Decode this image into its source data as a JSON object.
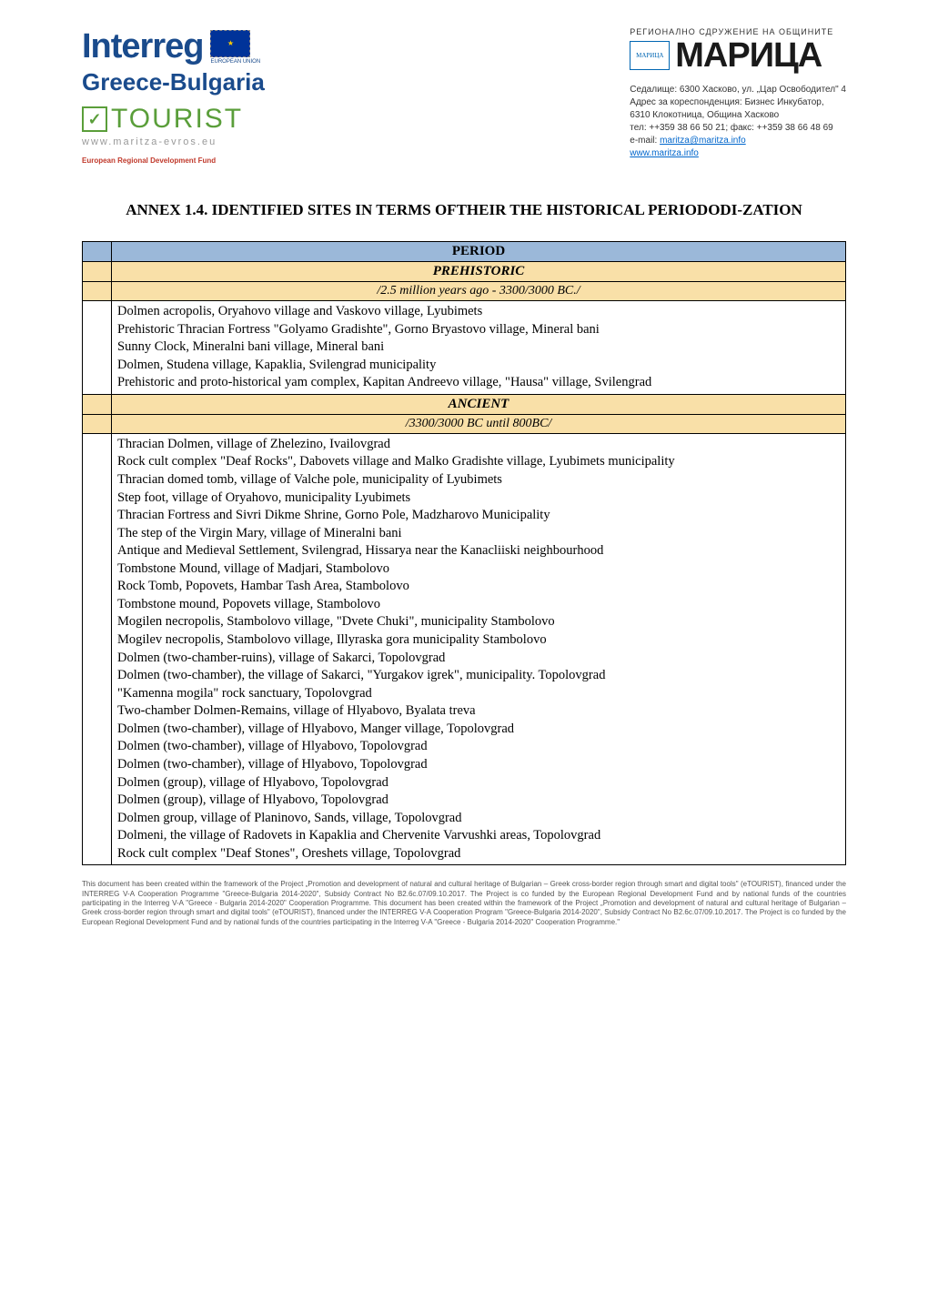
{
  "header": {
    "interreg": "Interreg",
    "eu_label": "EUROPEAN UNION",
    "greece_bulgaria": "Greece-Bulgaria",
    "tourist": "TOURIST",
    "tourist_url": "www.maritza-evros.eu",
    "erdf": "European Regional Development Fund",
    "maritza_super": "РЕГИОНАЛНО СДРУЖЕНИЕ НА ОБЩИНИТЕ",
    "maritza_logo": "МАРИЦА",
    "maritza_main": "МАРИЦА",
    "contact_line1": "Седалище: 6300 Хасково, ул. „Цар Освободител\" 4",
    "contact_line2": "Адрес за кореспонденция: Бизнес Инкубатор,",
    "contact_line3": "6310 Клокотница, Община Хасково",
    "contact_line4": "тел: ++359 38 66 50 21; факс: ++359 38 66 48 69",
    "contact_email_label": "e-mail: ",
    "contact_email": "maritza@maritza.info",
    "contact_web": "www.maritza.info"
  },
  "title": "ANNEX 1.4. IDENTIFIED SITES IN TERMS OFTHEIR THE HISTORICAL PERIODODI-ZATION",
  "table": {
    "period": "PERIOD",
    "era1": {
      "name": "PREHISTORIC",
      "range": "/2.5 million years ago - 3300/3000 BC./",
      "lines": [
        "Dolmen acropolis, Oryahovo village and Vaskovo village, Lyubimets",
        "Prehistoric Thracian Fortress \"Golyamo Gradishte\", Gorno Bryastovo village, Mineral bani",
        "Sunny Clock, Mineralni bani village, Mineral bani",
        "Dolmen, Studena village, Kapaklia, Svilengrad municipality",
        "Prehistoric and proto-historical yam complex, Kapitan Andreevo village, \"Hausa\" village, Svilengrad"
      ]
    },
    "era2": {
      "name": "ANCIENT",
      "range": "/3300/3000 BC until 800BC/",
      "lines": [
        "Thracian Dolmen, village of Zhelezino, Ivailovgrad",
        "Rock cult complex \"Deaf Rocks\", Dabovets village and Malko Gradishte village, Lyubimets municipality",
        "Thracian domed tomb, village of Valche pole, municipality of Lyubimets",
        "Step foot, village of Oryahovo, municipality Lyubimets",
        "Thracian Fortress and Sivri Dikme Shrine, Gorno Pole, Madzharovo Municipality",
        "The step of the Virgin Mary, village of Mineralni bani",
        "Antique and Medieval Settlement, Svilengrad, Hissarya near the Kanacliiski neighbourhood",
        "Tombstone Mound, village of Madjari, Stambolovo",
        "Rock Tomb, Popovets, Hambar Tash Area, Stambolovo",
        "Tombstone mound, Popovets village, Stambolovo",
        "Mogilen necropolis, Stambolovo village, \"Dvete Chuki\", municipality Stambolovo",
        "Mogilev necropolis, Stambolovo village, Illyraska gora municipality Stambolovo",
        "Dolmen (two-chamber-ruins), village of Sakarci, Topolovgrad",
        "Dolmen (two-chamber), the village of Sakarci, \"Yurgakov igrek\", municipality. Topolovgrad",
        "\"Kamenna mogila\" rock sanctuary, Topolovgrad",
        "Two-chamber Dolmen-Remains, village of Hlyabovo, Byalata treva",
        "Dolmen (two-chamber), village of Hlyabovo, Manger village, Topolovgrad",
        "Dolmen (two-chamber), village of Hlyabovo, Topolovgrad",
        " Dolmen (two-chamber), village of Hlyabovo, Topolovgrad",
        "Dolmen (group), village of Hlyabovo, Topolovgrad",
        "Dolmen (group), village of Hlyabovo, Topolovgrad",
        "Dolmen group, village of Planinovo, Sands, village, Topolovgrad",
        "Dolmeni, the village of Radovets in Kapaklia and Chervenite Varvushki areas, Topolovgrad",
        "Rock cult complex \"Deaf Stones\", Oreshets village, Topolovgrad"
      ]
    }
  },
  "footer": "This document has been created within the framework of the Project „Promotion and development of natural and cultural heritage of Bulgarian – Greek cross-border region through smart and digital tools\" (eTOURIST), financed under the INTERREG V-A Cooperation Programme \"Greece-Bulgaria 2014-2020\", Subsidy Contract No B2.6c.07/09.10.2017. The Project is co funded by the European Regional Development Fund and by national funds of the countries participating in the Interreg V-A \"Greece - Bulgaria 2014-2020\" Cooperation Programme. This document has been created within the framework of the Project „Promotion and development of natural and cultural heritage of Bulgarian – Greek cross-border region through smart and digital tools\" (eTOURIST), financed under the INTERREG V-A Cooperation Program \"Greece-Bulgaria 2014-2020\", Subsidy Contract No B2.6c.07/09.10.2017. The Project is co funded by the European Regional Development Fund and by national funds of the countries participating in the Interreg V-A \"Greece - Bulgaria 2014-2020\" Cooperation Programme.\""
}
